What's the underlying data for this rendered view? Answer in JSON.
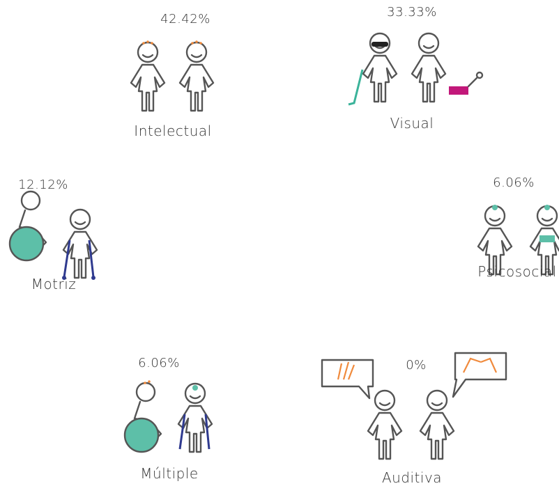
{
  "groups": [
    {
      "label": "Intelectual",
      "percent": "42.42%"
    },
    {
      "label": "Visual",
      "percent": "33.33%"
    },
    {
      "label": "Motriz",
      "percent": "12.12%"
    },
    {
      "label": "Psicosocial",
      "percent": "6.06%"
    },
    {
      "label": "Múltiple",
      "percent": "6.06%"
    },
    {
      "label": "Auditiva",
      "percent": "0%"
    }
  ]
}
